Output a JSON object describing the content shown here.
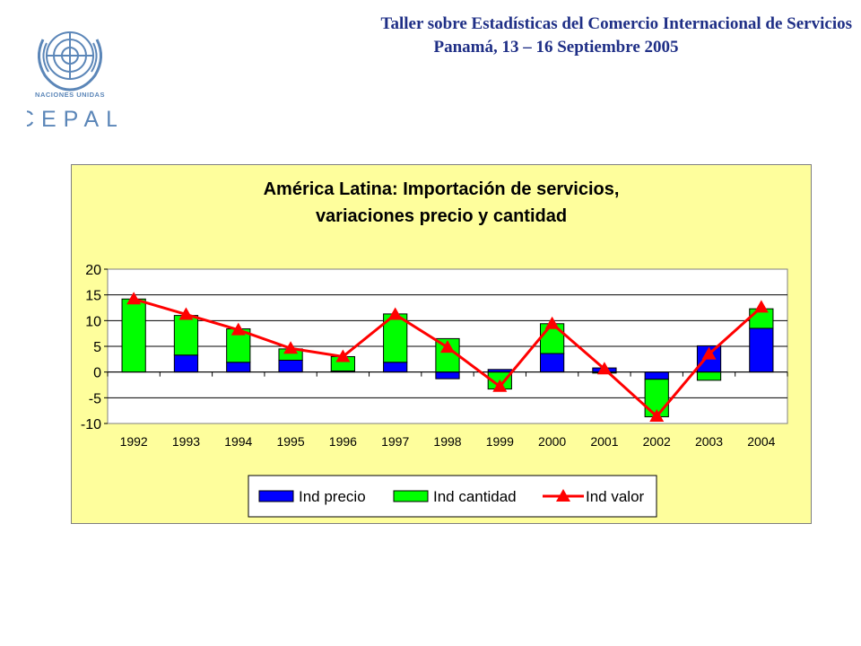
{
  "header": {
    "line1": "Taller sobre Estadísticas del Comercio Internacional de Servicios",
    "line2": "Panamá, 13 – 16 Septiembre 2005"
  },
  "logo": {
    "org_name": "NACIONES UNIDAS",
    "acronym": "CEPAL",
    "color": "#5b86b8"
  },
  "chart_data": {
    "type": "bar",
    "subtype": "stacked bar with line overlay",
    "title": "América Latina: Importación de servicios,",
    "subtitle": "variaciones precio y cantidad",
    "categories": [
      "1992",
      "1993",
      "1994",
      "1995",
      "1996",
      "1997",
      "1998",
      "1999",
      "2000",
      "2001",
      "2002",
      "2003",
      "2004"
    ],
    "series": [
      {
        "name": "Ind precio",
        "kind": "bar",
        "color": "#0000ff",
        "values": [
          0.0,
          3.3,
          1.9,
          2.3,
          0.2,
          1.9,
          -1.3,
          0.5,
          3.6,
          0.8,
          -1.4,
          5.1,
          8.5
        ]
      },
      {
        "name": "Ind cantidad",
        "kind": "bar",
        "color": "#00ff00",
        "values": [
          14.2,
          7.7,
          6.5,
          2.2,
          2.8,
          9.4,
          6.5,
          -3.3,
          5.8,
          -0.2,
          -7.3,
          -1.6,
          3.8
        ]
      },
      {
        "name": "Ind valor",
        "kind": "line",
        "color": "#ff0000",
        "values": [
          14.2,
          11.2,
          8.2,
          4.6,
          3.0,
          11.2,
          4.8,
          -2.8,
          9.4,
          0.6,
          -8.6,
          3.5,
          12.6
        ]
      }
    ],
    "yticks": [
      "20",
      "15",
      "10",
      "5",
      "0",
      "-5",
      "-10"
    ],
    "ylim": [
      -10,
      20
    ],
    "legend": "bottom",
    "background": "#fefe9c",
    "plot_background": "#ffffff",
    "grid": true
  }
}
